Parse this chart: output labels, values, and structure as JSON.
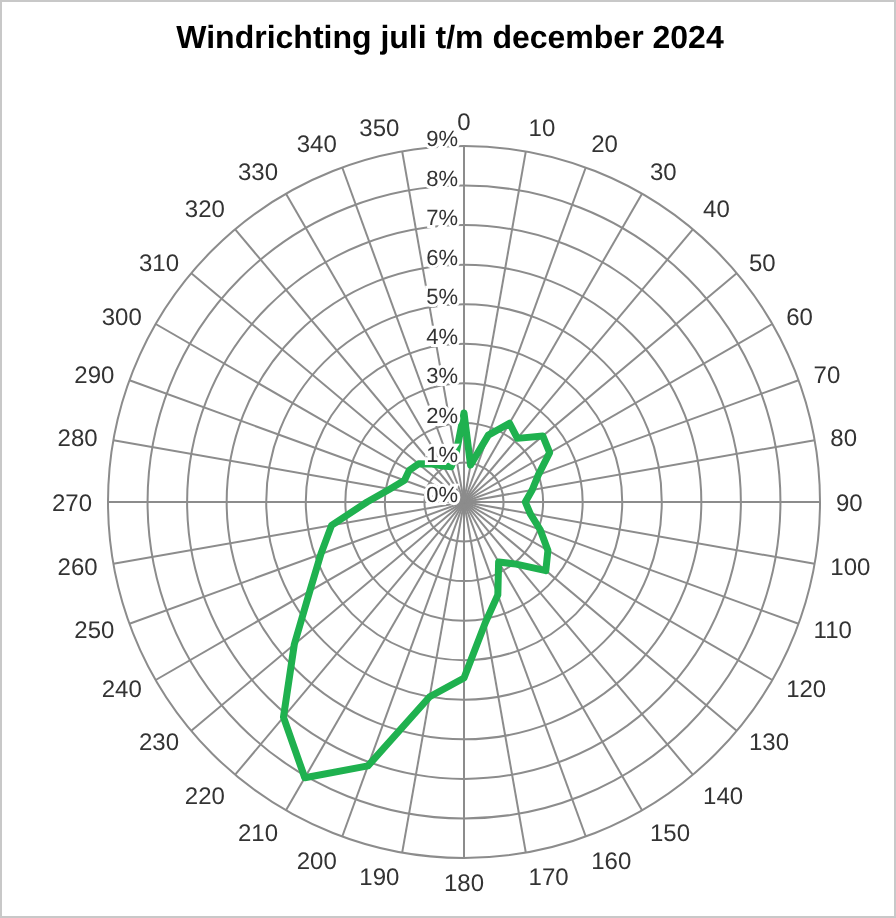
{
  "chart_data": {
    "type": "radar",
    "title": "Windrichting juli t/m december 2024",
    "categories": [
      "0",
      "10",
      "20",
      "30",
      "40",
      "50",
      "60",
      "70",
      "80",
      "90",
      "100",
      "110",
      "120",
      "130",
      "140",
      "150",
      "160",
      "170",
      "180",
      "190",
      "200",
      "210",
      "220",
      "230",
      "240",
      "250",
      "260",
      "270",
      "280",
      "290",
      "300",
      "310",
      "320",
      "330",
      "340",
      "350"
    ],
    "series": [
      {
        "color": "#1fb14f",
        "values": [
          2.25,
          0.95,
          1.8,
          2.3,
          2.1,
          2.6,
          2.5,
          2.0,
          1.75,
          1.55,
          1.7,
          2.05,
          2.45,
          2.7,
          2.05,
          1.75,
          2.5,
          3.1,
          4.45,
          5.0,
          7.1,
          8.05,
          7.1,
          5.6,
          4.5,
          3.85,
          3.4,
          2.45,
          1.9,
          1.6,
          1.6,
          1.5,
          1.25,
          1.05,
          0.95,
          1.2
        ]
      }
    ],
    "ylim": [
      0,
      9
    ],
    "yticks": [
      {
        "value": 0,
        "label": "0%"
      },
      {
        "value": 1,
        "label": "1%"
      },
      {
        "value": 2,
        "label": "2%"
      },
      {
        "value": 3,
        "label": "3%"
      },
      {
        "value": 4,
        "label": "4%"
      },
      {
        "value": 5,
        "label": "5%"
      },
      {
        "value": 6,
        "label": "6%"
      },
      {
        "value": 7,
        "label": "7%"
      },
      {
        "value": 8,
        "label": "8%"
      },
      {
        "value": 9,
        "label": "9%"
      }
    ],
    "grid": true
  }
}
